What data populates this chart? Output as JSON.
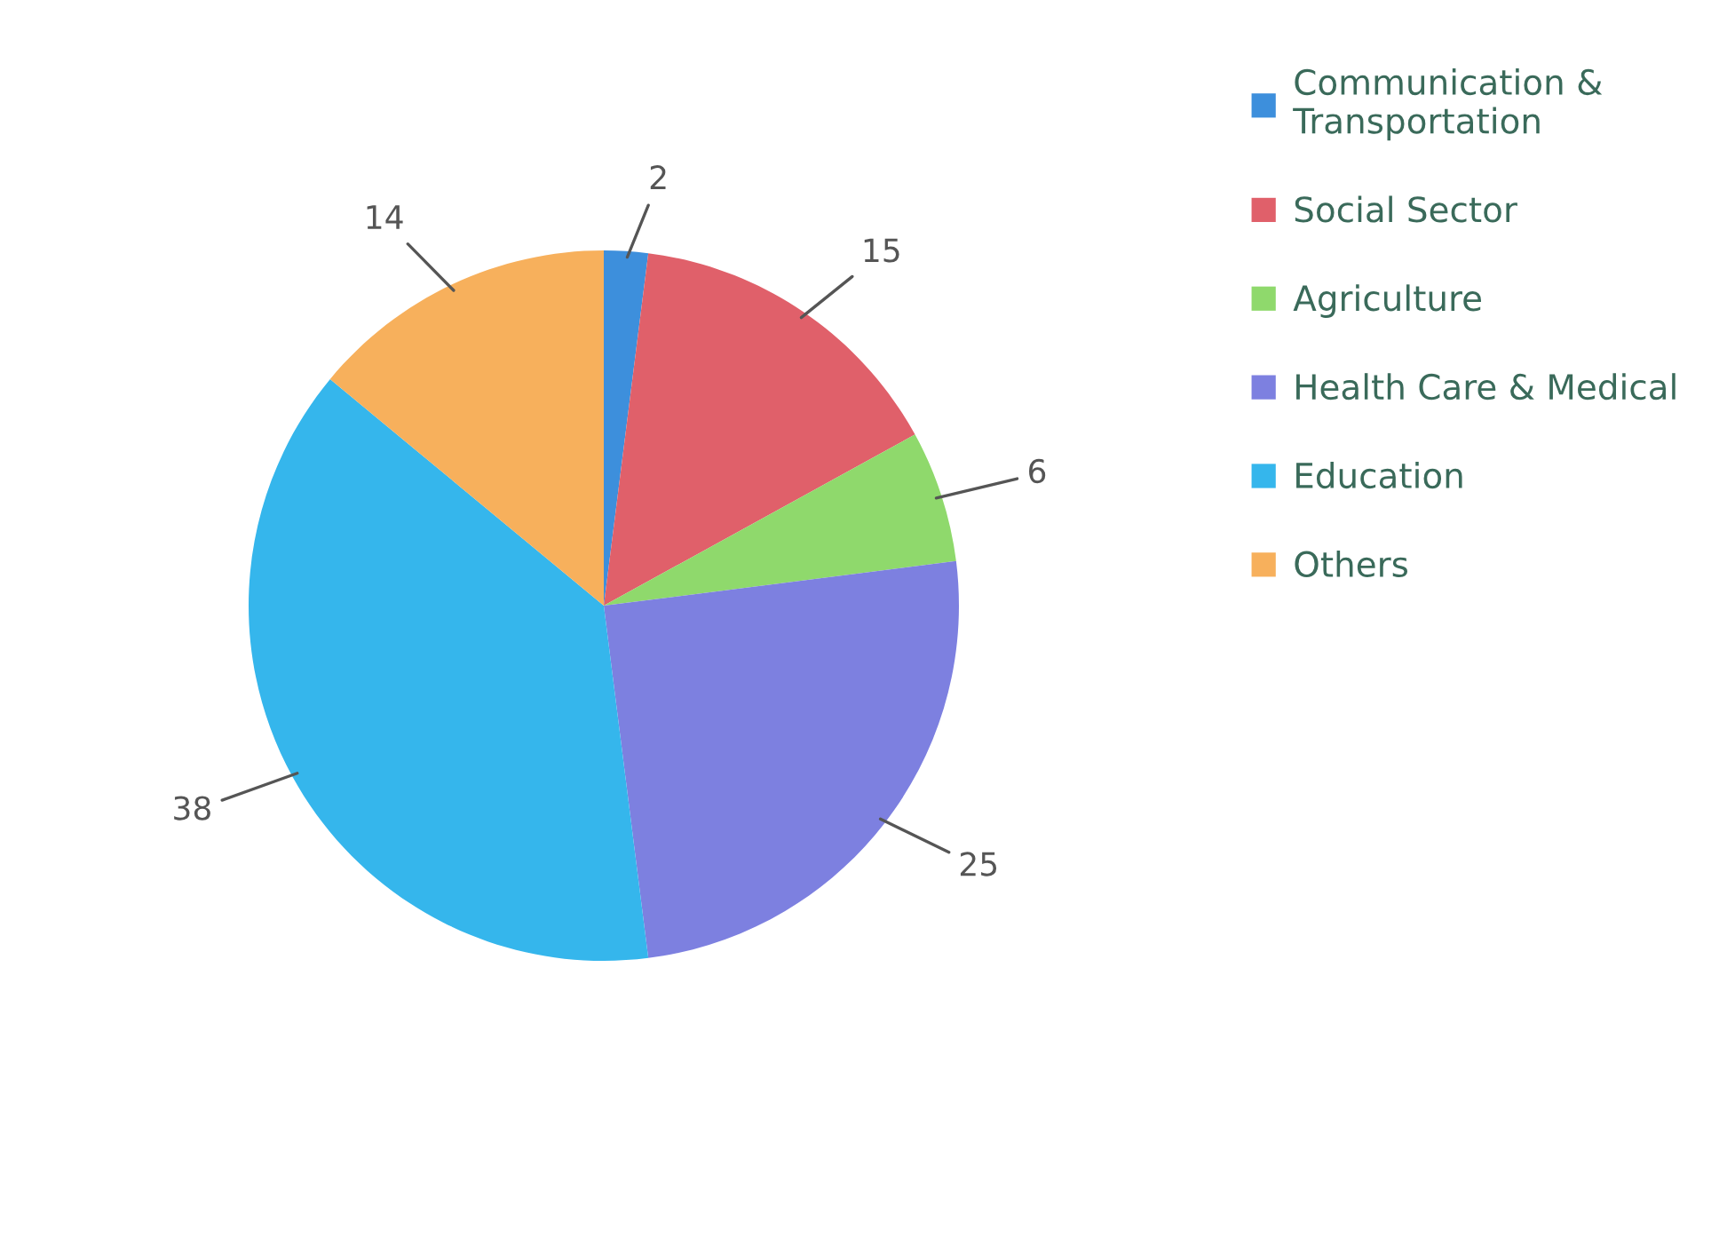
{
  "chart_data": {
    "type": "pie",
    "categories": [
      "Communication & Transportation",
      "Social Sector",
      "Agriculture",
      "Health Care & Medical",
      "Education",
      "Others"
    ],
    "values": [
      2,
      15,
      6,
      25,
      38,
      14
    ],
    "colors": [
      "#3d8fdc",
      "#e0606a",
      "#8fd96c",
      "#7d80e0",
      "#35b6ec",
      "#f7b05c"
    ],
    "data_labels": true,
    "legend": "right"
  }
}
